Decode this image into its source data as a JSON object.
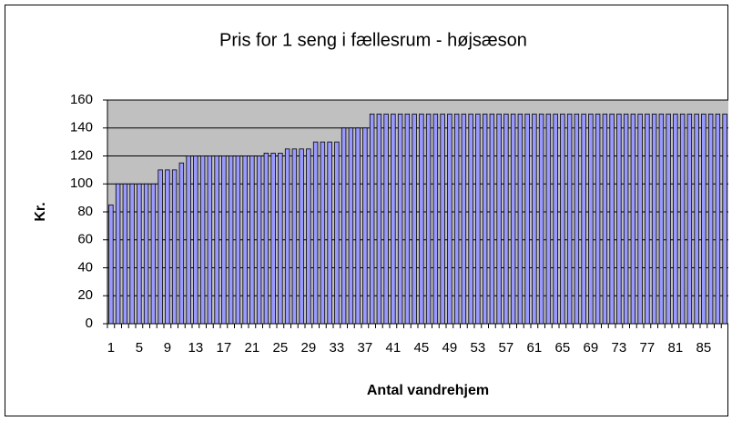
{
  "chart_data": {
    "type": "bar",
    "title": "Pris for 1 seng i fællesrum - højsæson",
    "x_label": "Antal vandrehjem",
    "y_label": "Kr.",
    "categories": [
      1,
      null,
      null,
      null,
      5,
      null,
      null,
      null,
      9,
      null,
      null,
      null,
      13,
      null,
      null,
      null,
      17,
      null,
      null,
      null,
      21,
      null,
      null,
      null,
      25,
      null,
      null,
      null,
      29,
      null,
      null,
      null,
      33,
      null,
      null,
      null,
      37,
      null,
      null,
      null,
      41,
      null,
      null,
      null,
      45,
      null,
      null,
      null,
      49,
      null,
      null,
      null,
      53,
      null,
      null,
      null,
      57,
      null,
      null,
      null,
      61,
      null,
      null,
      null,
      65,
      null,
      null,
      null,
      69,
      null,
      null,
      null,
      73,
      null,
      null,
      null,
      77,
      null,
      null,
      null,
      81,
      null,
      null,
      null,
      85,
      null,
      null,
      null
    ],
    "values": [
      85,
      100,
      100,
      100,
      100,
      100,
      100,
      110,
      110,
      110,
      115,
      120,
      120,
      120,
      120,
      120,
      120,
      120,
      120,
      120,
      120,
      120,
      122,
      122,
      122,
      125,
      125,
      125,
      125,
      130,
      130,
      130,
      130,
      140,
      140,
      140,
      140,
      150,
      150,
      150,
      150,
      150,
      150,
      150,
      150,
      150,
      150,
      150,
      150,
      150,
      150,
      150,
      150,
      150,
      150,
      150,
      150,
      150,
      150,
      150,
      150,
      150,
      150,
      150,
      150,
      150,
      150,
      150,
      150,
      150,
      150,
      150,
      150,
      150,
      150,
      150,
      150,
      150,
      150,
      150,
      150,
      150,
      150,
      150,
      150,
      150,
      150,
      150
    ],
    "color": "#9999ff",
    "ylim": [
      0,
      160
    ],
    "yticks": [
      0,
      20,
      40,
      60,
      80,
      100,
      120,
      140,
      160
    ],
    "grid": true
  }
}
